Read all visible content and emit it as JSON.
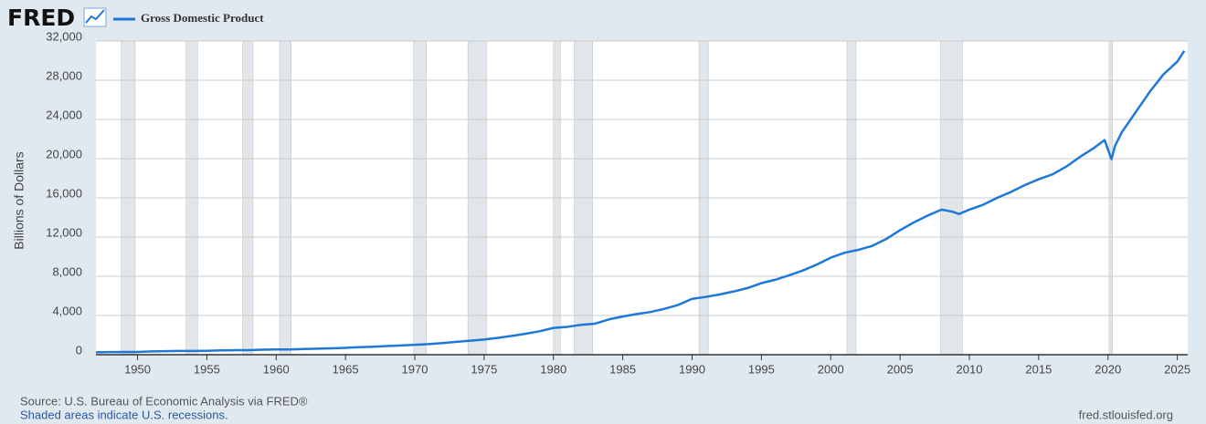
{
  "chart_data": {
    "type": "line",
    "logo": "FRED",
    "y_label": "Billions of Dollars",
    "source": "Source: U.S. Bureau of Economic Analysis via FRED®",
    "note": "Shaded areas indicate U.S. recessions.",
    "site": "fred.stlouisfed.org",
    "x": [
      1947,
      1948,
      1949,
      1950,
      1951,
      1952,
      1953,
      1954,
      1955,
      1956,
      1957,
      1958,
      1959,
      1960,
      1961,
      1962,
      1963,
      1964,
      1965,
      1966,
      1967,
      1968,
      1969,
      1970,
      1971,
      1972,
      1973,
      1974,
      1975,
      1976,
      1977,
      1978,
      1979,
      1980,
      1981,
      1982,
      1983,
      1984,
      1985,
      1986,
      1987,
      1988,
      1989,
      1990,
      1991,
      1992,
      1993,
      1994,
      1995,
      1996,
      1997,
      1998,
      1999,
      2000,
      2001,
      2002,
      2003,
      2004,
      2005,
      2006,
      2007,
      2008,
      2008.75,
      2009.25,
      2010,
      2011,
      2012,
      2013,
      2014,
      2015,
      2016,
      2017,
      2018,
      2019,
      2019.75,
      2020.25,
      2020.5,
      2021,
      2022,
      2023,
      2024,
      2025,
      2025.5
    ],
    "series": [
      {
        "name": "Gross Domestic Product",
        "color": "#1e78d8",
        "values": [
          243,
          266,
          275,
          280,
          336,
          359,
          379,
          380,
          400,
          438,
          461,
          467,
          507,
          537,
          535,
          584,
          612,
          656,
          703,
          770,
          814,
          879,
          945,
          1013,
          1078,
          1181,
          1317,
          1430,
          1548,
          1721,
          1921,
          2141,
          2391,
          2732,
          2842,
          3050,
          3164,
          3602,
          3898,
          4152,
          4355,
          4678,
          5079,
          5700,
          5900,
          6150,
          6450,
          6800,
          7300,
          7650,
          8100,
          8600,
          9200,
          9900,
          10400,
          10700,
          11100,
          11800,
          12700,
          13500,
          14200,
          14800,
          14600,
          14350,
          14800,
          15300,
          16000,
          16600,
          17300,
          17900,
          18400,
          19200,
          20200,
          21100,
          21900,
          19950,
          21300,
          22700,
          24750,
          26800,
          28600,
          29900,
          31000
        ]
      }
    ],
    "recessions": [
      [
        1948.83,
        1949.83
      ],
      [
        1953.5,
        1954.33
      ],
      [
        1957.58,
        1958.33
      ],
      [
        1960.25,
        1961.08
      ],
      [
        1969.92,
        1970.83
      ],
      [
        1973.83,
        1975.17
      ],
      [
        1980.0,
        1980.5
      ],
      [
        1981.5,
        1982.83
      ],
      [
        1990.5,
        1991.17
      ],
      [
        2001.17,
        2001.83
      ],
      [
        2007.92,
        2009.5
      ],
      [
        2020.08,
        2020.33
      ]
    ],
    "recession_color": "#e1e6eb",
    "xlim": [
      1947,
      2025.75
    ],
    "ylim": [
      0,
      32000
    ],
    "xticks": [
      1950,
      1955,
      1960,
      1965,
      1970,
      1975,
      1980,
      1985,
      1990,
      1995,
      2000,
      2005,
      2010,
      2015,
      2020,
      2025
    ],
    "yticks": [
      0,
      {
        "value": 4000,
        "label": "4,000"
      },
      {
        "value": 8000,
        "label": "8,000"
      },
      {
        "value": 12000,
        "label": "12,000"
      },
      {
        "value": 16000,
        "label": "16,000"
      },
      {
        "value": 20000,
        "label": "20,000"
      },
      {
        "value": 24000,
        "label": "24,000"
      },
      {
        "value": 28000,
        "label": "28,000"
      },
      {
        "value": 32000,
        "label": "32,000"
      }
    ],
    "grid": true
  }
}
